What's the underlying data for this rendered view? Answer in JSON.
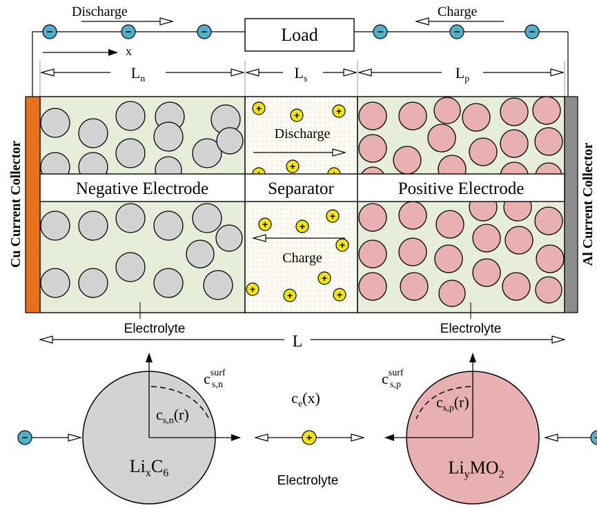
{
  "load": "Load",
  "discharge_top": "Discharge",
  "charge_top": "Charge",
  "x_axis": "x",
  "dim": {
    "n_main": "L",
    "n_sub": "n",
    "s_main": "L",
    "s_sub": "s",
    "p_main": "L",
    "p_sub": "p",
    "total": "L"
  },
  "sep_discharge": "Discharge",
  "sep_charge": "Charge",
  "band": {
    "negative": "Negative Electrode",
    "separator": "Separator",
    "positive": "Positive Electrode"
  },
  "cu_collector": "Cu Current Collector",
  "al_collector": "Al Current Collector",
  "electrolyte_left": "Electrolyte",
  "electrolyte_right": "Electrolyte",
  "electrolyte_bottom": "Electrolyte",
  "ce_main": "c",
  "ce_sub": "e",
  "ce_arg": "(x)",
  "csn_main": "c",
  "csn_sub": "s,n",
  "csn_arg": "(r)",
  "csp_main": "c",
  "csp_sub": "s,p",
  "csp_arg": "(r)",
  "surf_n_main": "c",
  "surf_n_sup": "surf",
  "surf_n_sub": "s,n",
  "surf_p_main": "c",
  "surf_p_sup": "surf",
  "surf_p_sub": "s,p",
  "lixc6": {
    "a": "Li",
    "b": "x",
    "c": "C",
    "d": "6"
  },
  "liymo2": {
    "a": "Li",
    "b": "y",
    "c": "MO",
    "d": "2"
  },
  "electron_symbol": "−",
  "ion_symbol": "+",
  "colors": {
    "cu": "#e8701a",
    "al": "#8c8c8c",
    "electrode_bg": "#e6eed9",
    "neg_particle": "#d3d3d3",
    "pos_particle": "#e8b0b0",
    "electron": "#4fb0cc",
    "ion": "#f2e600",
    "separator_bg": "#fbfbf3"
  }
}
